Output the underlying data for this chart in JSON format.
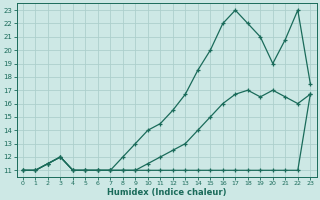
{
  "xlabel": "Humidex (Indice chaleur)",
  "xlim": [
    -0.5,
    23.5
  ],
  "ylim": [
    10.5,
    23.5
  ],
  "xticks": [
    0,
    1,
    2,
    3,
    4,
    5,
    6,
    7,
    8,
    9,
    10,
    11,
    12,
    13,
    14,
    15,
    16,
    17,
    18,
    19,
    20,
    21,
    22,
    23
  ],
  "yticks": [
    11,
    12,
    13,
    14,
    15,
    16,
    17,
    18,
    19,
    20,
    21,
    22,
    23
  ],
  "bg_color": "#cde8e5",
  "line_color": "#1a6b5a",
  "grid_color": "#b0d5d0",
  "line1_x": [
    0,
    1,
    2,
    3,
    4,
    5,
    6,
    7,
    8,
    9,
    10,
    11,
    12,
    13,
    14,
    15,
    16,
    17,
    18,
    19,
    20,
    21,
    22,
    23
  ],
  "line1_y": [
    11,
    11,
    11.5,
    12,
    11,
    11,
    11,
    11,
    11,
    11,
    11.5,
    12,
    12.5,
    13,
    14,
    15,
    16,
    16.7,
    17,
    16.5,
    17,
    16.5,
    16,
    16.7
  ],
  "line2_x": [
    0,
    1,
    2,
    3,
    4,
    5,
    6,
    7,
    8,
    9,
    10,
    11,
    12,
    13,
    14,
    15,
    16,
    17,
    18,
    19,
    20,
    21,
    22,
    23
  ],
  "line2_y": [
    11,
    11,
    11.5,
    12,
    11,
    11,
    11,
    11,
    12,
    13,
    14,
    14.5,
    15.5,
    16.7,
    18.5,
    20,
    22,
    23,
    22,
    21,
    19,
    20.8,
    23,
    17.5
  ],
  "line3_x": [
    0,
    1,
    2,
    3,
    4,
    5,
    6,
    7,
    8,
    9,
    10,
    11,
    12,
    13,
    14,
    15,
    16,
    17,
    18,
    19,
    20,
    21,
    22,
    23
  ],
  "line3_y": [
    11,
    11,
    11.5,
    12,
    11,
    11,
    11,
    11,
    11,
    11,
    11,
    11,
    11,
    11,
    11,
    11,
    11,
    11,
    11,
    11,
    11,
    11,
    11,
    16.7
  ]
}
